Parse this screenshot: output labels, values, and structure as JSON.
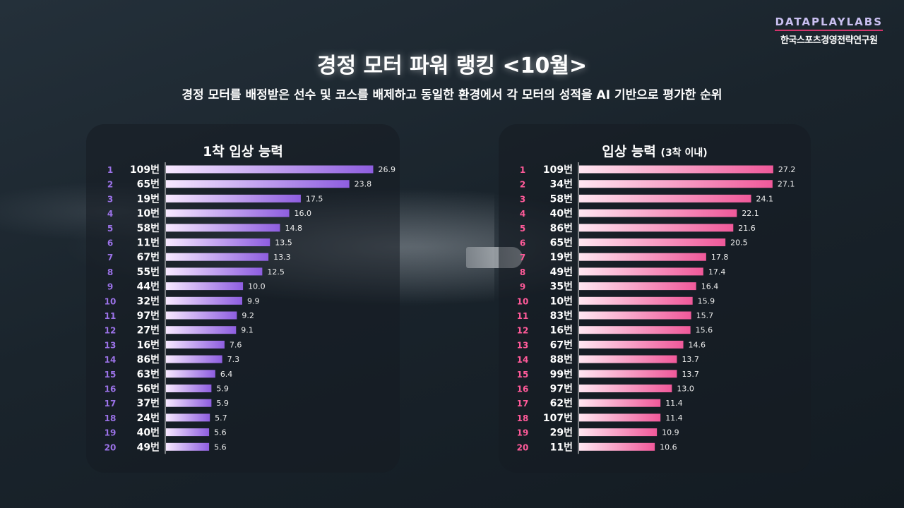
{
  "brand": {
    "top": "DATAPLAYLABS",
    "bottom": "한국스포츠경영전략연구원"
  },
  "title": "경정 모터 파워 랭킹 <10월>",
  "subtitle": "경정 모터를 배정받은 선수 및 코스를 배제하고 동일한 환경에서 각 모터의 성적을 AI 기반으로 평가한 순위",
  "colors": {
    "left_bar": "#8e5ee0",
    "left_rank": "#9b72e8",
    "right_bar": "#f0599a",
    "right_rank": "#ff5a99"
  },
  "chart_data": [
    {
      "type": "bar",
      "orientation": "horizontal",
      "title": "1착 입상 능력",
      "ranks": [
        1,
        2,
        3,
        4,
        5,
        6,
        7,
        8,
        9,
        10,
        11,
        12,
        13,
        14,
        15,
        16,
        17,
        18,
        19,
        20
      ],
      "categories": [
        "109번",
        "65번",
        "19번",
        "10번",
        "58번",
        "11번",
        "67번",
        "55번",
        "44번",
        "32번",
        "97번",
        "27번",
        "16번",
        "86번",
        "63번",
        "56번",
        "37번",
        "24번",
        "40번",
        "49번"
      ],
      "values": [
        26.9,
        23.8,
        17.5,
        16.0,
        14.8,
        13.5,
        13.3,
        12.5,
        10.0,
        9.9,
        9.2,
        9.1,
        7.6,
        7.3,
        6.4,
        5.9,
        5.9,
        5.7,
        5.6,
        5.6
      ],
      "value_labels": [
        "26.9",
        "23.8",
        "17.5",
        "16.0",
        "14.8",
        "13.5",
        "13.3",
        "12.5",
        "10.0",
        "9.9",
        "9.2",
        "9.1",
        "7.6",
        "7.3",
        "6.4",
        "5.9",
        "5.9",
        "5.7",
        "5.6",
        "5.6"
      ],
      "xlim": [
        0,
        27.5
      ]
    },
    {
      "type": "bar",
      "orientation": "horizontal",
      "title": "입상 능력",
      "title_note": "(3착 이내)",
      "ranks": [
        1,
        2,
        3,
        4,
        5,
        6,
        7,
        8,
        9,
        10,
        11,
        12,
        13,
        14,
        15,
        16,
        17,
        18,
        19,
        20
      ],
      "categories": [
        "109번",
        "34번",
        "58번",
        "40번",
        "86번",
        "65번",
        "19번",
        "49번",
        "35번",
        "10번",
        "83번",
        "16번",
        "67번",
        "88번",
        "99번",
        "97번",
        "62번",
        "107번",
        "29번",
        "11번"
      ],
      "values": [
        27.2,
        27.1,
        24.1,
        22.1,
        21.6,
        20.5,
        17.8,
        17.4,
        16.4,
        15.9,
        15.7,
        15.6,
        14.6,
        13.7,
        13.7,
        13.0,
        11.4,
        11.4,
        10.9,
        10.6
      ],
      "value_labels": [
        "27.2",
        "27.1",
        "24.1",
        "22.1",
        "21.6",
        "20.5",
        "17.8",
        "17.4",
        "16.4",
        "15.9",
        "15.7",
        "15.6",
        "14.6",
        "13.7",
        "13.7",
        "13.0",
        "11.4",
        "11.4",
        "10.9",
        "10.6"
      ],
      "xlim": [
        0,
        28.5
      ]
    }
  ]
}
